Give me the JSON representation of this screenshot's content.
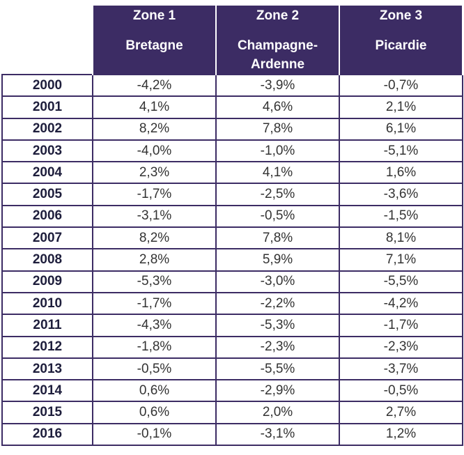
{
  "headers": [
    {
      "zone": "Zone 1",
      "region": "Bretagne"
    },
    {
      "zone": "Zone 2",
      "region": "Champagne-Ardenne"
    },
    {
      "zone": "Zone 3",
      "region": "Picardie"
    }
  ],
  "rows": [
    {
      "year": "2000",
      "values": [
        "-4,2%",
        "-3,9%",
        "-0,7%"
      ]
    },
    {
      "year": "2001",
      "values": [
        "4,1%",
        "4,6%",
        "2,1%"
      ]
    },
    {
      "year": "2002",
      "values": [
        "8,2%",
        "7,8%",
        "6,1%"
      ]
    },
    {
      "year": "2003",
      "values": [
        "-4,0%",
        "-1,0%",
        "-5,1%"
      ]
    },
    {
      "year": "2004",
      "values": [
        "2,3%",
        "4,1%",
        "1,6%"
      ]
    },
    {
      "year": "2005",
      "values": [
        "-1,7%",
        "-2,5%",
        "-3,6%"
      ]
    },
    {
      "year": "2006",
      "values": [
        "-3,1%",
        "-0,5%",
        "-1,5%"
      ]
    },
    {
      "year": "2007",
      "values": [
        "8,2%",
        "7,8%",
        "8,1%"
      ]
    },
    {
      "year": "2008",
      "values": [
        "2,8%",
        "5,9%",
        "7,1%"
      ]
    },
    {
      "year": "2009",
      "values": [
        "-5,3%",
        "-3,0%",
        "-5,5%"
      ]
    },
    {
      "year": "2010",
      "values": [
        "-1,7%",
        "-2,2%",
        "-4,2%"
      ]
    },
    {
      "year": "2011",
      "values": [
        "-4,3%",
        "-5,3%",
        "-1,7%"
      ]
    },
    {
      "year": "2012",
      "values": [
        "-1,8%",
        "-2,3%",
        "-2,3%"
      ]
    },
    {
      "year": "2013",
      "values": [
        "-0,5%",
        "-5,5%",
        "-3,7%"
      ]
    },
    {
      "year": "2014",
      "values": [
        "0,6%",
        "-2,9%",
        "-0,5%"
      ]
    },
    {
      "year": "2015",
      "values": [
        "0,6%",
        "2,0%",
        "2,7%"
      ]
    },
    {
      "year": "2016",
      "values": [
        "-0,1%",
        "-3,1%",
        "1,2%"
      ]
    }
  ],
  "colors": {
    "header_bg": "#3c2c64",
    "border": "#3c2c64",
    "header_text": "#ffffff"
  }
}
